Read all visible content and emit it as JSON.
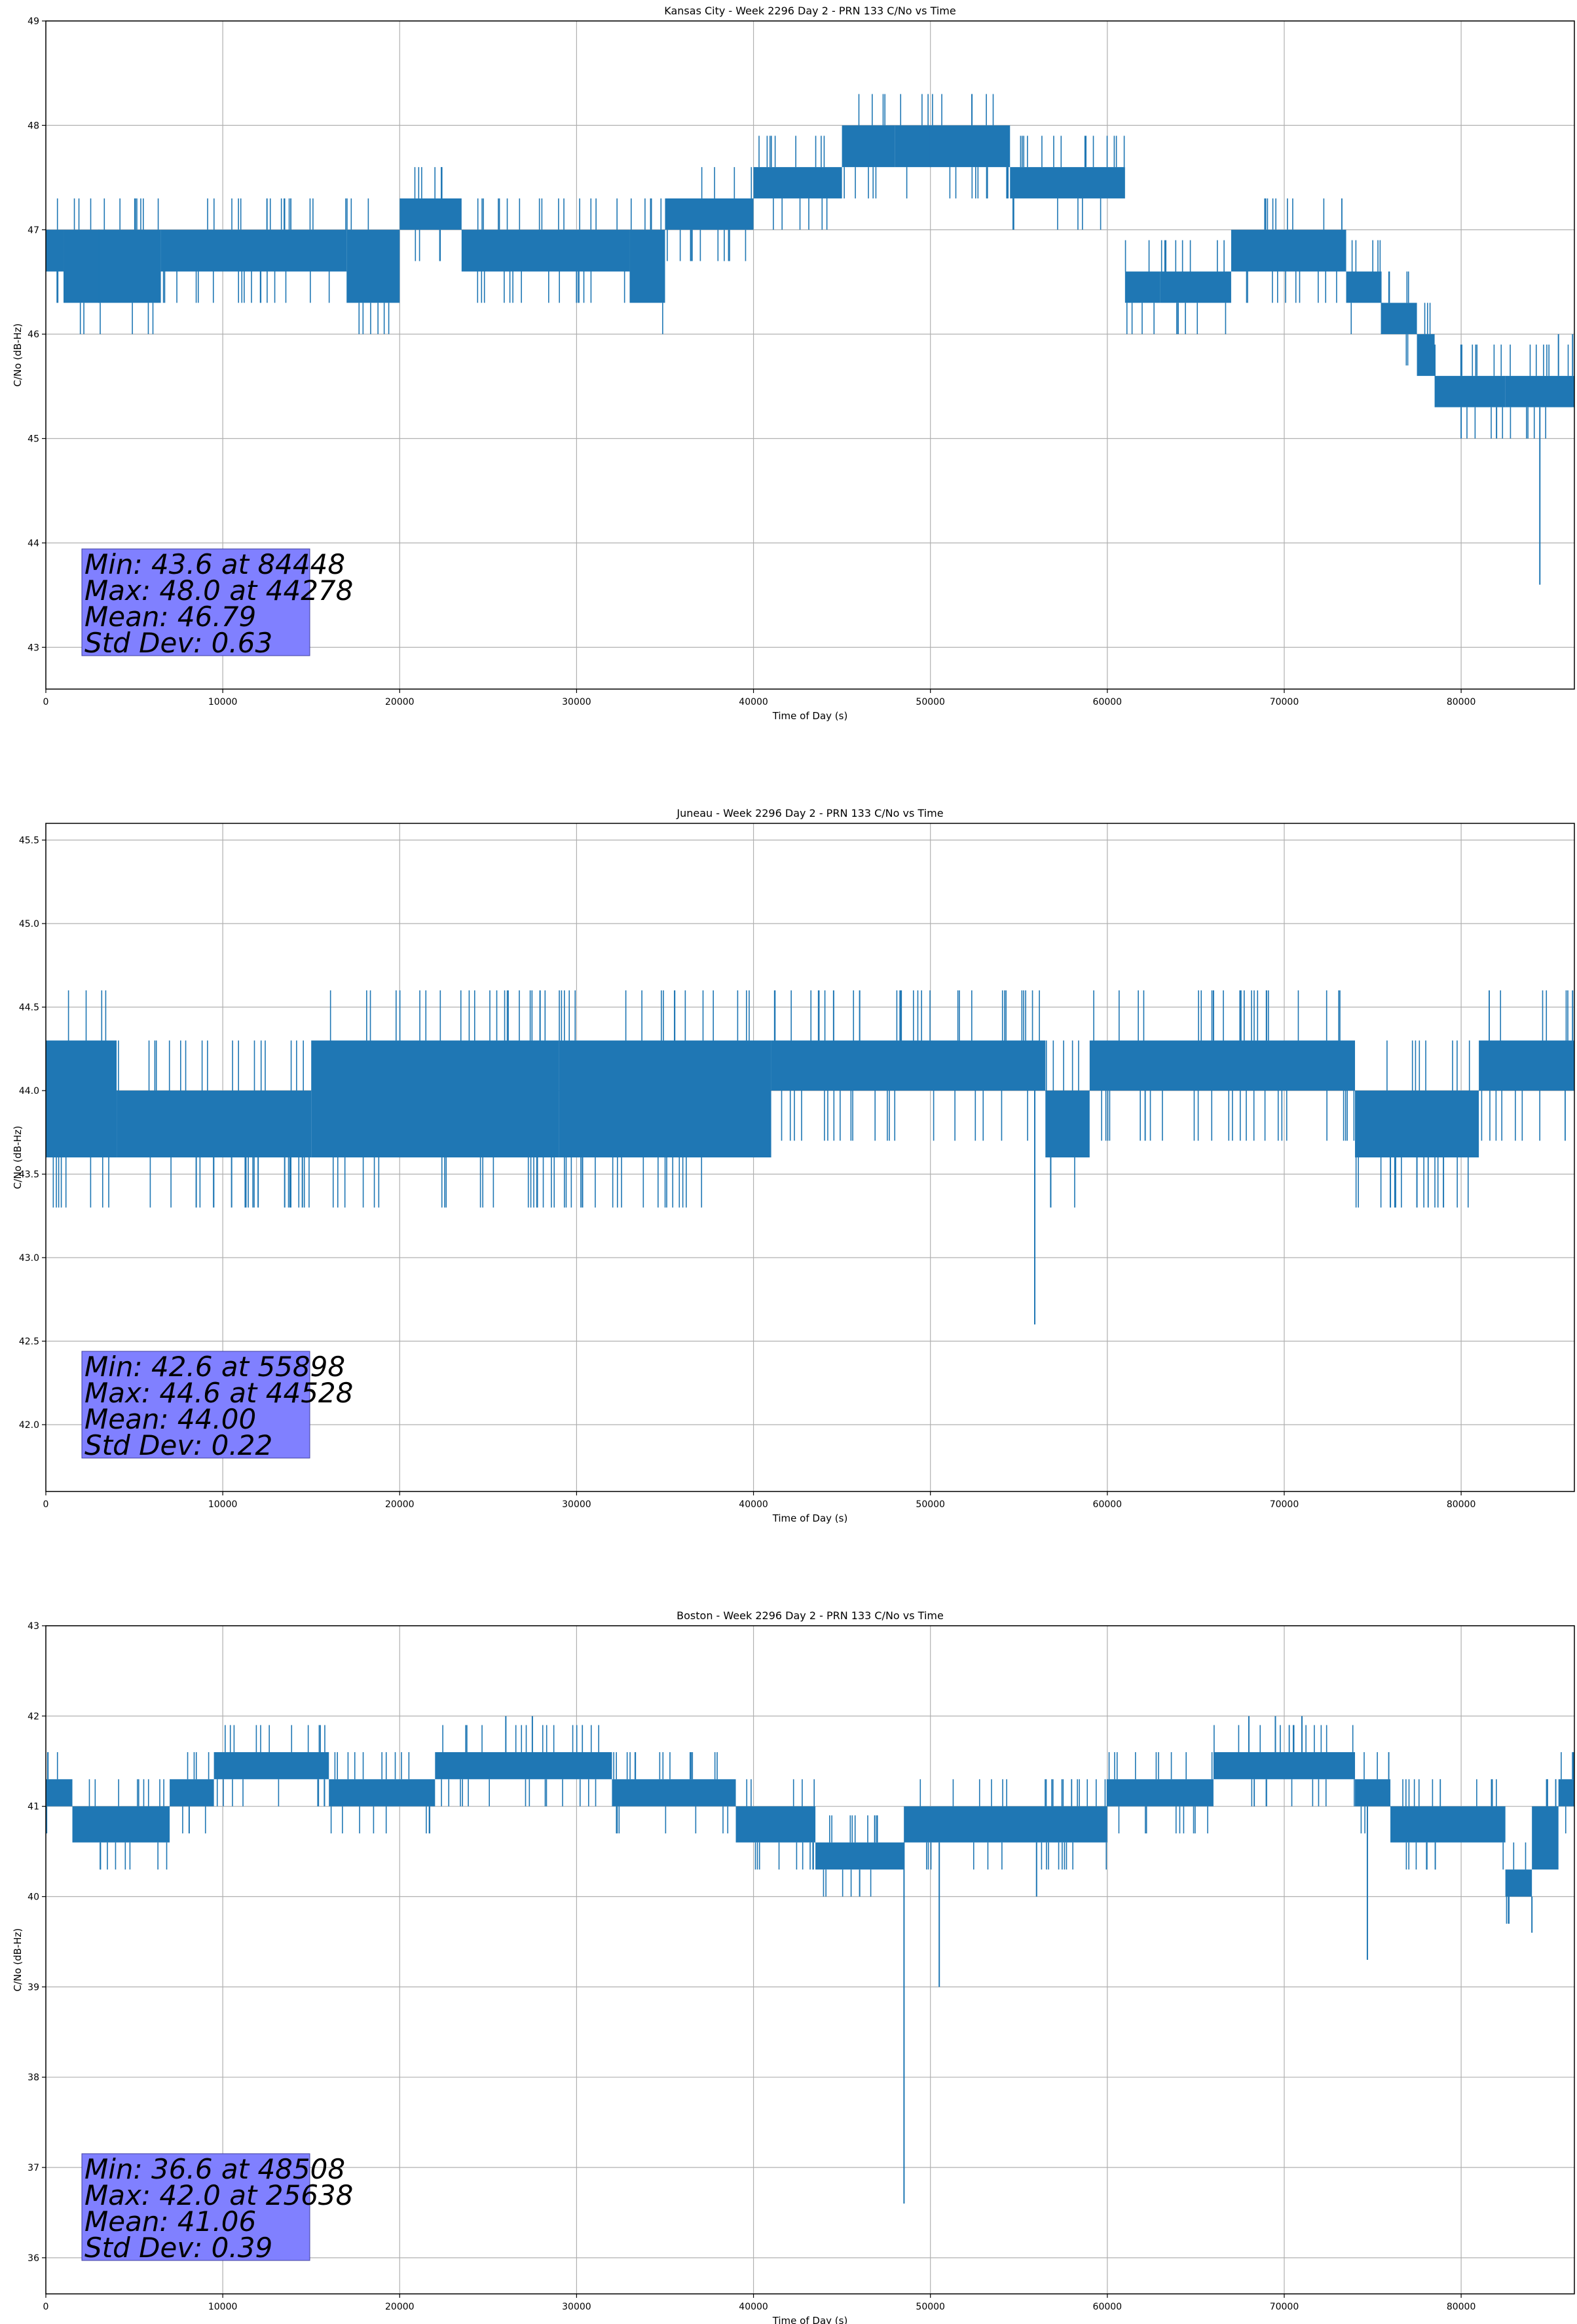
{
  "chart_data": [
    {
      "type": "line",
      "title": "Kansas City - Week 2296 Day 2 - PRN 133 C/No vs Time",
      "xlabel": "Time of Day (s)",
      "ylabel": "C/No (dB-Hz)",
      "xlim": [
        0,
        86400
      ],
      "ylim": [
        42.6,
        49
      ],
      "xticks": [
        "0",
        "10000",
        "20000",
        "30000",
        "40000",
        "50000",
        "60000",
        "70000",
        "80000"
      ],
      "yticks": [
        "43",
        "44",
        "45",
        "46",
        "47",
        "48",
        "49"
      ],
      "grid": true,
      "color": "#1f77b4",
      "stats": [
        "Min: 43.6 at 84448",
        "Max: 48.0 at 44278",
        "Mean: 46.79",
        "Std Dev: 0.63"
      ],
      "band_segments": [
        {
          "x0": 0,
          "x1": 1000,
          "lo": 46.6,
          "hi": 47.0
        },
        {
          "x0": 1000,
          "x1": 6500,
          "lo": 46.3,
          "hi": 47.0
        },
        {
          "x0": 6500,
          "x1": 17000,
          "lo": 46.6,
          "hi": 47.0
        },
        {
          "x0": 17000,
          "x1": 20000,
          "lo": 46.3,
          "hi": 47.0
        },
        {
          "x0": 20000,
          "x1": 23500,
          "lo": 47.0,
          "hi": 47.3
        },
        {
          "x0": 23500,
          "x1": 33000,
          "lo": 46.6,
          "hi": 47.0
        },
        {
          "x0": 33000,
          "x1": 35000,
          "lo": 46.3,
          "hi": 47.0
        },
        {
          "x0": 35000,
          "x1": 40000,
          "lo": 47.0,
          "hi": 47.3
        },
        {
          "x0": 40000,
          "x1": 45000,
          "lo": 47.3,
          "hi": 47.6
        },
        {
          "x0": 45000,
          "x1": 48000,
          "lo": 47.6,
          "hi": 48.0
        },
        {
          "x0": 48000,
          "x1": 54500,
          "lo": 47.6,
          "hi": 48.0
        },
        {
          "x0": 54500,
          "x1": 61000,
          "lo": 47.3,
          "hi": 47.6
        },
        {
          "x0": 61000,
          "x1": 63000,
          "lo": 46.3,
          "hi": 46.6
        },
        {
          "x0": 63000,
          "x1": 67000,
          "lo": 46.3,
          "hi": 46.6
        },
        {
          "x0": 67000,
          "x1": 73500,
          "lo": 46.6,
          "hi": 47.0
        },
        {
          "x0": 73500,
          "x1": 75500,
          "lo": 46.3,
          "hi": 46.6
        },
        {
          "x0": 75500,
          "x1": 77500,
          "lo": 46.0,
          "hi": 46.3
        },
        {
          "x0": 77500,
          "x1": 78500,
          "lo": 45.6,
          "hi": 46.0
        },
        {
          "x0": 78500,
          "x1": 82500,
          "lo": 45.3,
          "hi": 45.6
        },
        {
          "x0": 82500,
          "x1": 86400,
          "lo": 45.3,
          "hi": 45.6
        }
      ],
      "spikes": [
        {
          "x": 3000,
          "y": 46.3
        },
        {
          "x": 12500,
          "y": 47.3
        },
        {
          "x": 30000,
          "y": 46.3
        },
        {
          "x": 50000,
          "y": 47.6
        },
        {
          "x": 64000,
          "y": 46.0
        },
        {
          "x": 75500,
          "y": 46.0
        },
        {
          "x": 80000,
          "y": 45.0
        },
        {
          "x": 82000,
          "y": 45.0
        },
        {
          "x": 84448,
          "y": 43.6
        },
        {
          "x": 85500,
          "y": 46.0
        },
        {
          "x": 86300,
          "y": 46.0
        }
      ]
    },
    {
      "type": "line",
      "title": "Juneau - Week 2296 Day 2 - PRN 133 C/No vs Time",
      "xlabel": "Time of Day (s)",
      "ylabel": "C/No (dB-Hz)",
      "xlim": [
        0,
        86400
      ],
      "ylim": [
        41.6,
        45.6
      ],
      "xticks": [
        "0",
        "10000",
        "20000",
        "30000",
        "40000",
        "50000",
        "60000",
        "70000",
        "80000"
      ],
      "yticks": [
        "42.0",
        "42.5",
        "43.0",
        "43.5",
        "44.0",
        "44.5",
        "45.0",
        "45.5"
      ],
      "grid": true,
      "color": "#1f77b4",
      "stats": [
        "Min: 42.6 at 55898",
        "Max: 44.6 at 44528",
        "Mean: 44.00",
        "Std Dev: 0.22"
      ],
      "band_segments": [
        {
          "x0": 0,
          "x1": 4000,
          "lo": 43.6,
          "hi": 44.3
        },
        {
          "x0": 4000,
          "x1": 15000,
          "lo": 43.6,
          "hi": 44.0
        },
        {
          "x0": 15000,
          "x1": 29000,
          "lo": 43.6,
          "hi": 44.3
        },
        {
          "x0": 29000,
          "x1": 41000,
          "lo": 43.6,
          "hi": 44.3
        },
        {
          "x0": 41000,
          "x1": 56500,
          "lo": 44.0,
          "hi": 44.3
        },
        {
          "x0": 56500,
          "x1": 59000,
          "lo": 43.6,
          "hi": 44.0
        },
        {
          "x0": 59000,
          "x1": 74000,
          "lo": 44.0,
          "hi": 44.3
        },
        {
          "x0": 74000,
          "x1": 81000,
          "lo": 43.6,
          "hi": 44.0
        },
        {
          "x0": 81000,
          "x1": 86400,
          "lo": 44.0,
          "hi": 44.3
        }
      ],
      "spikes": [
        {
          "x": 8500,
          "y": 43.3
        },
        {
          "x": 10500,
          "y": 43.3
        },
        {
          "x": 12000,
          "y": 43.3
        },
        {
          "x": 13500,
          "y": 43.3
        },
        {
          "x": 14500,
          "y": 43.3
        },
        {
          "x": 44528,
          "y": 44.6
        },
        {
          "x": 46000,
          "y": 44.6
        },
        {
          "x": 55898,
          "y": 42.6
        },
        {
          "x": 66000,
          "y": 44.6
        },
        {
          "x": 67500,
          "y": 44.6
        },
        {
          "x": 69000,
          "y": 44.6
        },
        {
          "x": 76000,
          "y": 43.3
        },
        {
          "x": 77500,
          "y": 43.3
        },
        {
          "x": 79000,
          "y": 43.3
        },
        {
          "x": 86300,
          "y": 44.6
        }
      ]
    },
    {
      "type": "line",
      "title": "Boston - Week 2296 Day 2 - PRN 133 C/No vs Time",
      "xlabel": "Time of Day (s)",
      "ylabel": "C/No (dB-Hz)",
      "xlim": [
        0,
        86400
      ],
      "ylim": [
        35.6,
        43
      ],
      "xticks": [
        "0",
        "10000",
        "20000",
        "30000",
        "40000",
        "50000",
        "60000",
        "70000",
        "80000"
      ],
      "yticks": [
        "36",
        "37",
        "38",
        "39",
        "40",
        "41",
        "42",
        "43"
      ],
      "grid": true,
      "color": "#1f77b4",
      "stats": [
        "Min: 36.6 at 48508",
        "Max: 42.0 at 25638",
        "Mean: 41.06",
        "Std Dev: 0.39"
      ],
      "band_segments": [
        {
          "x0": 0,
          "x1": 1500,
          "lo": 41.0,
          "hi": 41.3
        },
        {
          "x0": 1500,
          "x1": 7000,
          "lo": 40.6,
          "hi": 41.0
        },
        {
          "x0": 7000,
          "x1": 9500,
          "lo": 41.0,
          "hi": 41.3
        },
        {
          "x0": 9500,
          "x1": 16000,
          "lo": 41.3,
          "hi": 41.6
        },
        {
          "x0": 16000,
          "x1": 22000,
          "lo": 41.0,
          "hi": 41.3
        },
        {
          "x0": 22000,
          "x1": 32000,
          "lo": 41.3,
          "hi": 41.6
        },
        {
          "x0": 32000,
          "x1": 39000,
          "lo": 41.0,
          "hi": 41.3
        },
        {
          "x0": 39000,
          "x1": 43500,
          "lo": 40.6,
          "hi": 41.0
        },
        {
          "x0": 43500,
          "x1": 48500,
          "lo": 40.3,
          "hi": 40.6
        },
        {
          "x0": 48500,
          "x1": 60000,
          "lo": 40.6,
          "hi": 41.0
        },
        {
          "x0": 60000,
          "x1": 66000,
          "lo": 41.0,
          "hi": 41.3
        },
        {
          "x0": 66000,
          "x1": 74000,
          "lo": 41.3,
          "hi": 41.6
        },
        {
          "x0": 74000,
          "x1": 76000,
          "lo": 41.0,
          "hi": 41.3
        },
        {
          "x0": 76000,
          "x1": 82500,
          "lo": 40.6,
          "hi": 41.0
        },
        {
          "x0": 82500,
          "x1": 84000,
          "lo": 40.0,
          "hi": 40.3
        },
        {
          "x0": 84000,
          "x1": 85500,
          "lo": 40.3,
          "hi": 41.0
        },
        {
          "x0": 85500,
          "x1": 86400,
          "lo": 41.0,
          "hi": 41.3
        }
      ],
      "spikes": [
        {
          "x": 26000,
          "y": 42.0
        },
        {
          "x": 27500,
          "y": 42.0
        },
        {
          "x": 46000,
          "y": 40.0
        },
        {
          "x": 48508,
          "y": 36.6
        },
        {
          "x": 50500,
          "y": 39.0
        },
        {
          "x": 56000,
          "y": 40.0
        },
        {
          "x": 68000,
          "y": 42.0
        },
        {
          "x": 69500,
          "y": 42.0
        },
        {
          "x": 71000,
          "y": 42.0
        },
        {
          "x": 74700,
          "y": 39.3
        },
        {
          "x": 84000,
          "y": 39.6
        },
        {
          "x": 86300,
          "y": 41.6
        }
      ]
    }
  ]
}
